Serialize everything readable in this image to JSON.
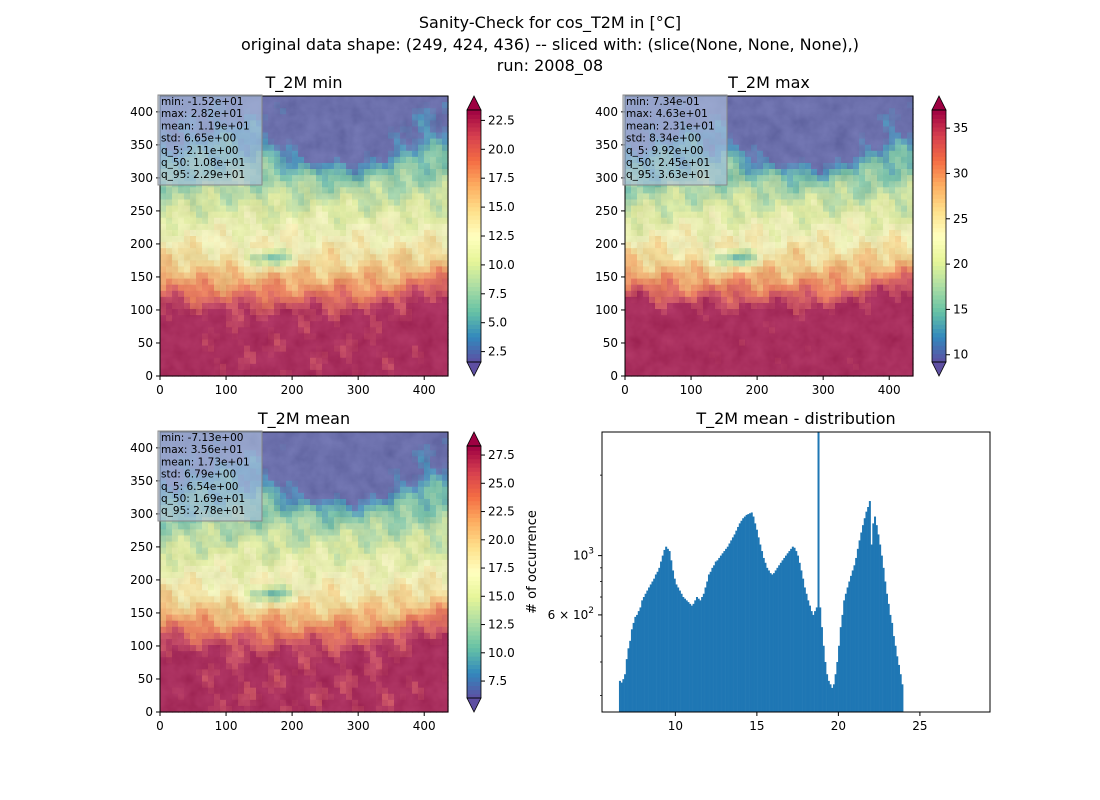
{
  "figure": {
    "title_lines": [
      "Sanity-Check for cos_T2M in [°C]",
      "original data shape: (249, 424, 436) -- sliced with: (slice(None, None, None),)",
      "run: 2008_08"
    ]
  },
  "colors": {
    "colormap": "Spectral_r",
    "stops": [
      "#5e4fa2",
      "#3288bd",
      "#66c2a5",
      "#abdda4",
      "#e6f598",
      "#ffffbf",
      "#fee08b",
      "#fdae61",
      "#f46d43",
      "#d53e4f",
      "#9e0142"
    ],
    "hist_bar": "#1f77b4",
    "stats_box_bg": "#b0c4de"
  },
  "chart_data": [
    {
      "type": "heatmap",
      "title": "T_2M min",
      "x_ticks": [
        "0",
        "100",
        "200",
        "300",
        "400"
      ],
      "y_ticks": [
        "0",
        "50",
        "100",
        "150",
        "200",
        "250",
        "300",
        "350",
        "400"
      ],
      "xlim": [
        0,
        436
      ],
      "ylim": [
        0,
        424
      ],
      "stats": [
        "min: -1.52e+01",
        "max: 2.82e+01",
        "mean: 1.19e+01",
        "std: 6.65e+00",
        "q_5: 2.11e+00",
        "q_50: 1.08e+01",
        "q_95: 2.29e+01"
      ],
      "colorbar": {
        "range": [
          1.6,
          23.4
        ],
        "extend": "both",
        "ticks": [
          "2.5",
          "5.0",
          "7.5",
          "10.0",
          "12.5",
          "15.0",
          "17.5",
          "20.0",
          "22.5"
        ],
        "tick_values": [
          2.5,
          5.0,
          7.5,
          10.0,
          12.5,
          15.0,
          17.5,
          20.0,
          22.5
        ]
      }
    },
    {
      "type": "heatmap",
      "title": "T_2M max",
      "x_ticks": [
        "0",
        "100",
        "200",
        "300",
        "400"
      ],
      "y_ticks": [
        "0",
        "50",
        "100",
        "150",
        "200",
        "250",
        "300",
        "350",
        "400"
      ],
      "xlim": [
        0,
        436
      ],
      "ylim": [
        0,
        424
      ],
      "stats": [
        "min: 7.34e-01",
        "max: 4.63e+01",
        "mean: 2.31e+01",
        "std: 8.34e+00",
        "q_5: 9.92e+00",
        "q_50: 2.45e+01",
        "q_95: 3.63e+01"
      ],
      "colorbar": {
        "range": [
          9.2,
          37.0
        ],
        "extend": "both",
        "ticks": [
          "10",
          "15",
          "20",
          "25",
          "30",
          "35"
        ],
        "tick_values": [
          10,
          15,
          20,
          25,
          30,
          35
        ]
      }
    },
    {
      "type": "heatmap",
      "title": "T_2M mean",
      "x_ticks": [
        "0",
        "100",
        "200",
        "300",
        "400"
      ],
      "y_ticks": [
        "0",
        "50",
        "100",
        "150",
        "200",
        "250",
        "300",
        "350",
        "400"
      ],
      "xlim": [
        0,
        436
      ],
      "ylim": [
        0,
        424
      ],
      "stats": [
        "min: -7.13e+00",
        "max: 3.56e+01",
        "mean: 1.73e+01",
        "std: 6.79e+00",
        "q_5: 6.54e+00",
        "q_50: 1.69e+01",
        "q_95: 2.78e+01"
      ],
      "colorbar": {
        "range": [
          6.0,
          28.3
        ],
        "extend": "both",
        "ticks": [
          "7.5",
          "10.0",
          "12.5",
          "15.0",
          "17.5",
          "20.0",
          "22.5",
          "25.0",
          "27.5"
        ],
        "tick_values": [
          7.5,
          10.0,
          12.5,
          15.0,
          17.5,
          20.0,
          22.5,
          25.0,
          27.5
        ]
      }
    },
    {
      "type": "bar",
      "title": "T_2M mean - distribution",
      "ylabel": "# of occurrence",
      "y_scale": "log",
      "xlim": [
        5.5,
        29.3
      ],
      "ylim": [
        260,
        2900
      ],
      "x_ticks": [
        "10",
        "15",
        "20",
        "25"
      ],
      "x_tick_values": [
        10,
        15,
        20,
        25
      ],
      "y_tick_labels": [
        "10^3",
        "6 × 10^2"
      ],
      "y_tick_values": [
        1000,
        600
      ],
      "bin_start": 6.54,
      "bin_width": 0.105,
      "values": [
        340,
        335,
        345,
        360,
        410,
        450,
        480,
        530,
        560,
        590,
        600,
        620,
        640,
        680,
        700,
        720,
        740,
        760,
        780,
        800,
        820,
        850,
        870,
        900,
        950,
        1000,
        1050,
        1080,
        1060,
        1040,
        960,
        880,
        820,
        780,
        760,
        740,
        720,
        700,
        690,
        680,
        670,
        660,
        650,
        660,
        680,
        700,
        690,
        680,
        700,
        720,
        760,
        800,
        850,
        870,
        900,
        920,
        950,
        960,
        980,
        1000,
        1020,
        1040,
        1060,
        1080,
        1110,
        1140,
        1170,
        1200,
        1240,
        1280,
        1320,
        1350,
        1380,
        1400,
        1420,
        1430,
        1440,
        1450,
        1400,
        1320,
        1250,
        1170,
        1100,
        1040,
        980,
        940,
        900,
        880,
        860,
        850,
        860,
        880,
        900,
        920,
        940,
        960,
        980,
        1000,
        1020,
        1040,
        1060,
        1080,
        1070,
        1040,
        1000,
        940,
        880,
        820,
        760,
        720,
        680,
        650,
        620,
        600,
        620,
        640,
        2900,
        640,
        540,
        460,
        400,
        360,
        340,
        330,
        320,
        330,
        360,
        400,
        460,
        540,
        600,
        680,
        720,
        760,
        800,
        840,
        880,
        920,
        980,
        1060,
        1140,
        1220,
        1300,
        1380,
        1460,
        1520,
        1600,
        1100,
        1320,
        1400,
        1300,
        1200,
        1100,
        1000,
        900,
        800,
        720,
        660,
        600,
        560,
        500,
        460,
        420,
        390,
        360,
        330
      ]
    }
  ]
}
